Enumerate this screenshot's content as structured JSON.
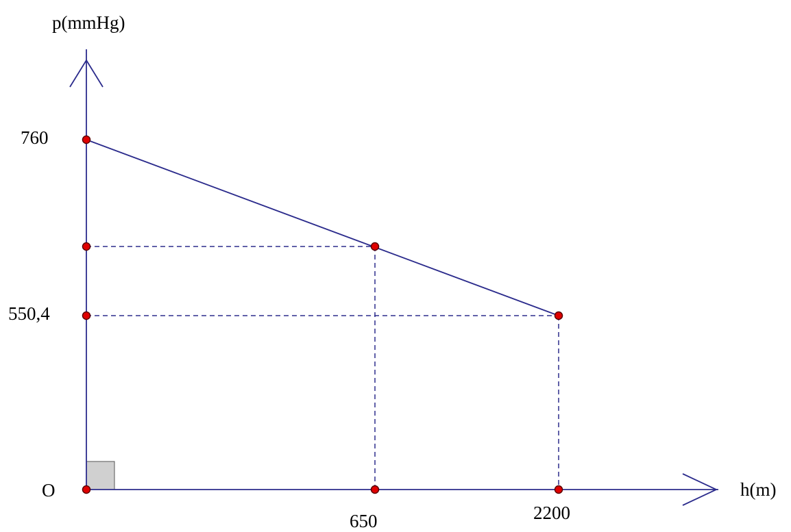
{
  "colors": {
    "axis": "#2b2b8c",
    "line": "#2b2b8c",
    "dash": "#2b2b8c",
    "point_fill": "#e00000",
    "point_stroke": "#5a0000",
    "right_angle_fill": "#d0d0d0"
  },
  "axes": {
    "y_label": "p(mmHg)",
    "x_label": "h(m)",
    "origin_label": "O"
  },
  "ticks": {
    "y_760": "760",
    "y_550": "550,4",
    "x_650": "650",
    "x_2200": "2200"
  }
}
